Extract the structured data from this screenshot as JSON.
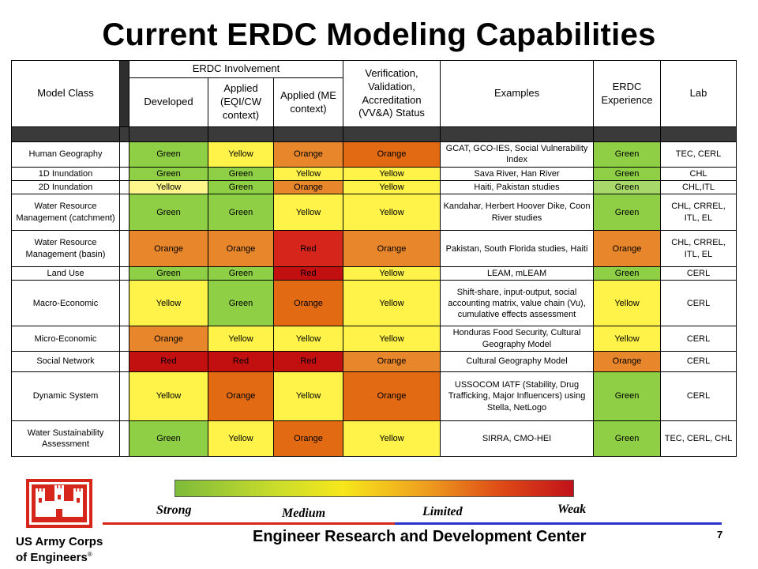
{
  "title": "Current ERDC Modeling Capabilities",
  "headers": {
    "model_class": "Model Class",
    "involvement": "ERDC Involvement",
    "developed": "Developed",
    "applied_eqi": "Applied (EQI/CW context)",
    "applied_me": "Applied (ME context)",
    "vva": "Verification, Validation, Accreditation (VV&A) Status",
    "examples": "Examples",
    "experience": "ERDC Experience",
    "lab": "Lab"
  },
  "rows": [
    {
      "model": "Human Geography",
      "developed": "Green",
      "eqi": "Yellow",
      "me": "Orange",
      "vva": "Orange",
      "examples": "GCAT, GCO-IES, Social Vulnerability Index",
      "experience": "Green",
      "lab": "TEC, CERL"
    },
    {
      "model": "1D Inundation",
      "developed": "Green",
      "eqi": "Green",
      "me": "Yellow",
      "vva": "Yellow",
      "examples": "Sava River, Han River",
      "experience": "Green",
      "lab": "CHL"
    },
    {
      "model": "2D Inundation",
      "developed": "Yellow",
      "eqi": "Green",
      "me": "Orange",
      "vva": "Yellow",
      "examples": "Haiti, Pakistan studies",
      "experience": "Green",
      "lab": "CHL,ITL"
    },
    {
      "model": "Water Resource Management (catchment)",
      "developed": "Green",
      "eqi": "Green",
      "me": "Yellow",
      "vva": "Yellow",
      "examples": "Kandahar, Herbert Hoover Dike, Coon River  studies",
      "experience": "Green",
      "lab": "CHL, CRREL, ITL, EL"
    },
    {
      "model": "Water Resource Management (basin)",
      "developed": "Orange",
      "eqi": "Orange",
      "me": "Red",
      "vva": "Orange",
      "examples": "Pakistan, South Florida studies, Haiti",
      "experience": "Orange",
      "lab": "CHL, CRREL, ITL, EL"
    },
    {
      "model": "Land Use",
      "developed": "Green",
      "eqi": "Green",
      "me": "Red",
      "vva": "Yellow",
      "examples": "LEAM, mLEAM",
      "experience": "Green",
      "lab": "CERL"
    },
    {
      "model": "Macro-Economic",
      "developed": "Yellow",
      "eqi": "Green",
      "me": "Orange",
      "vva": "Yellow",
      "examples": "Shift-share, input-output, social accounting matrix, value chain (Vu), cumulative effects assessment",
      "experience": "Yellow",
      "lab": "CERL"
    },
    {
      "model": "Micro-Economic",
      "developed": "Orange",
      "eqi": "Yellow",
      "me": "Yellow",
      "vva": "Yellow",
      "examples": "Honduras Food Security, Cultural Geography Model",
      "experience": "Yellow",
      "lab": "CERL"
    },
    {
      "model": "Social Network",
      "developed": "Red",
      "eqi": "Red",
      "me": "Red",
      "vva": "Orange",
      "examples": "Cultural Geography Model",
      "experience": "Orange",
      "lab": "CERL"
    },
    {
      "model": "Dynamic System",
      "developed": "Yellow",
      "eqi": "Orange",
      "me": "Yellow",
      "vva": "Orange",
      "examples": "USSOCOM IATF (Stability, Drug Trafficking, Major Influencers) using Stella, NetLogo",
      "experience": "Green",
      "lab": "CERL"
    },
    {
      "model": "Water Sustainability Assessment",
      "developed": "Green",
      "eqi": "Yellow",
      "me": "Orange",
      "vva": "Yellow",
      "examples": "SIRRA, CMO-HEI",
      "experience": "Green",
      "lab": "TEC, CERL, CHL"
    }
  ],
  "cell_colors": [
    [
      "#8fcf46",
      "#fff34a",
      "#e8862c",
      "#e26a12",
      "#8fcf46"
    ],
    [
      "#8fcf46",
      "#8fcf46",
      "#fff34a",
      "#fff34a",
      "#8fcf46"
    ],
    [
      "#fff78c",
      "#8fcf46",
      "#e8862c",
      "#fff34a",
      "#a8d86a"
    ],
    [
      "#8fcf46",
      "#8fcf46",
      "#fff34a",
      "#fff34a",
      "#8fcf46"
    ],
    [
      "#e8862c",
      "#e8862c",
      "#d6251b",
      "#e8862c",
      "#e8862c"
    ],
    [
      "#8fcf46",
      "#8fcf46",
      "#c20f0f",
      "#fff34a",
      "#8fcf46"
    ],
    [
      "#fff34a",
      "#8fcf46",
      "#e26a12",
      "#fff34a",
      "#fff34a"
    ],
    [
      "#e8862c",
      "#fff34a",
      "#fff34a",
      "#fff34a",
      "#fff34a"
    ],
    [
      "#c20f0f",
      "#c20f0f",
      "#c20f0f",
      "#e8862c",
      "#e8862c"
    ],
    [
      "#fff34a",
      "#e26a12",
      "#fff34a",
      "#e26a12",
      "#8fcf46"
    ],
    [
      "#8fcf46",
      "#fff34a",
      "#e26a12",
      "#fff34a",
      "#8fcf46"
    ]
  ],
  "legend": {
    "strong": "Strong",
    "medium": "Medium",
    "limited": "Limited",
    "weak": "Weak"
  },
  "footer": {
    "org_line1": "US Army Corps",
    "org_line2": "of Engineers",
    "registered": "®",
    "center": "Engineer Research and Development Center",
    "page": "7"
  }
}
